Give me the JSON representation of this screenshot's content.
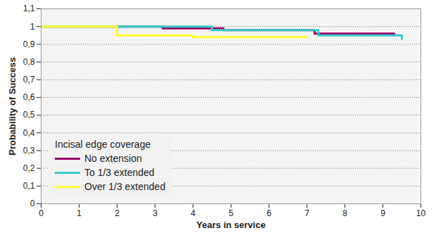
{
  "chart_data": {
    "type": "line",
    "line_style": "step",
    "x_label": "Years in service",
    "y_label": "Probability of Success",
    "legend_title": "Incisal edge coverage",
    "legend": "lower left",
    "grid": true,
    "xlim": [
      0,
      10
    ],
    "xticks": [
      0,
      1,
      2,
      3,
      4,
      5,
      6,
      7,
      8,
      9,
      10
    ],
    "ylim": [
      0,
      1.1
    ],
    "yticks": [
      0,
      {
        "value": 0.1,
        "label": "0,1"
      },
      {
        "value": 0.2,
        "label": "0,2"
      },
      {
        "value": 0.3,
        "label": "0,3"
      },
      {
        "value": 0.4,
        "label": "0,4"
      },
      {
        "value": 0.5,
        "label": "0,5"
      },
      {
        "value": 0.6,
        "label": "0,6"
      },
      {
        "value": 0.7,
        "label": "0,7"
      },
      {
        "value": 0.8,
        "label": "0,8"
      },
      {
        "value": 0.9,
        "label": "0,9"
      },
      1,
      {
        "value": 1.1,
        "label": "1,1"
      }
    ],
    "series": [
      {
        "name": "No extension",
        "color": "#990066",
        "x": [
          0,
          3.2,
          4.8,
          7.2,
          9.3
        ],
        "values": [
          1,
          0.99,
          0.98,
          0.96,
          0.96
        ]
      },
      {
        "name": "To 1/3 extended",
        "color": "#33cccc",
        "x": [
          0,
          4.5,
          7.3,
          9.5
        ],
        "values": [
          1,
          0.98,
          0.95,
          0.93
        ]
      },
      {
        "name": "Over 1/3 extended",
        "color": "#ffff33",
        "x": [
          0,
          2,
          4,
          7
        ],
        "values": [
          1,
          0.95,
          0.94,
          0.94
        ]
      }
    ]
  }
}
